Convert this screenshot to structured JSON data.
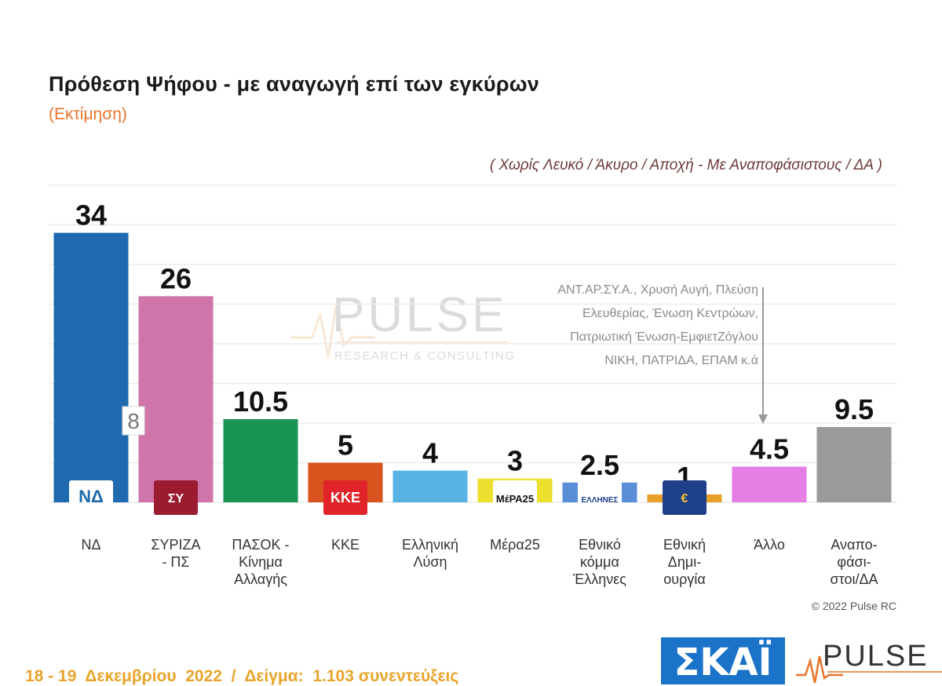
{
  "header": {
    "title": "Πρόθεση Ψήφου - με αναγωγή επί των εγκύρων",
    "subtitle": "(Εκτίμηση)",
    "note": "( Χωρίς Λευκό / Άκυρο / Αποχή  -  Με Αναποφάσιστους / ΔΑ )"
  },
  "chart_data": {
    "type": "bar",
    "categories": [
      [
        "ΝΔ"
      ],
      [
        "ΣΥΡΙΖΑ",
        "- ΠΣ"
      ],
      [
        "ΠΑΣΟΚ -",
        "Κίνημα",
        "Αλλαγής"
      ],
      [
        "ΚΚΕ"
      ],
      [
        "Ελληνική",
        "Λύση"
      ],
      [
        "Μέρα25"
      ],
      [
        "Εθνικό",
        "κόμμα",
        "Έλληνες"
      ],
      [
        "Εθνική",
        "Δημι-",
        "ουργία"
      ],
      [
        "Άλλο"
      ],
      [
        "Αναπο-",
        "φάσι-",
        "στοι/ΔΑ"
      ]
    ],
    "values": [
      34,
      26,
      10.5,
      5,
      4,
      3,
      2.5,
      1,
      4.5,
      9.5
    ],
    "value_labels": [
      "34",
      "26",
      "10.5",
      "5",
      "4",
      "3",
      "2.5",
      "1",
      "4.5",
      "9.5"
    ],
    "colors": [
      "#1f6aae",
      "#cf75a9",
      "#1a9455",
      "#d9531e",
      "#58b3e4",
      "#ecdf2e",
      "#5a8fd8",
      "#e8a12a",
      "#e57fe6",
      "#9a9a9a"
    ],
    "ylim": [
      0,
      40
    ],
    "grid": true,
    "difference_label": "8",
    "annotation": [
      "ΑΝΤ.ΑΡ.ΣΥ.Α., Χρυσή Αυγή, Πλεύση",
      "Ελευθερίας, Ένωση Κεντρώων,",
      "Πατριωτική Ένωση-ΕμφιετΖόγλου",
      "ΝΙΚΗ, ΠΑΤΡΙΔΑ, ΕΠΑΜ    κ.ά"
    ],
    "logos": [
      "ΝΔ",
      "ΣΥ",
      "",
      "ΚΚΕ",
      "",
      "ΜέΡΑ25",
      "ΕΛΛΗΝΕΣ",
      "€",
      "",
      ""
    ]
  },
  "watermark": {
    "brand": "PULSE",
    "tagline": "RESEARCH & CONSULTING"
  },
  "copyright": "© 2022 Pulse RC",
  "footer": "18 - 19  Δεκεμβρίου  2022  /  Δείγμα:  1.103 συνεντεύξεις",
  "logos": {
    "skai": "ΣΚΑΪ",
    "pulse": "PULSE"
  }
}
